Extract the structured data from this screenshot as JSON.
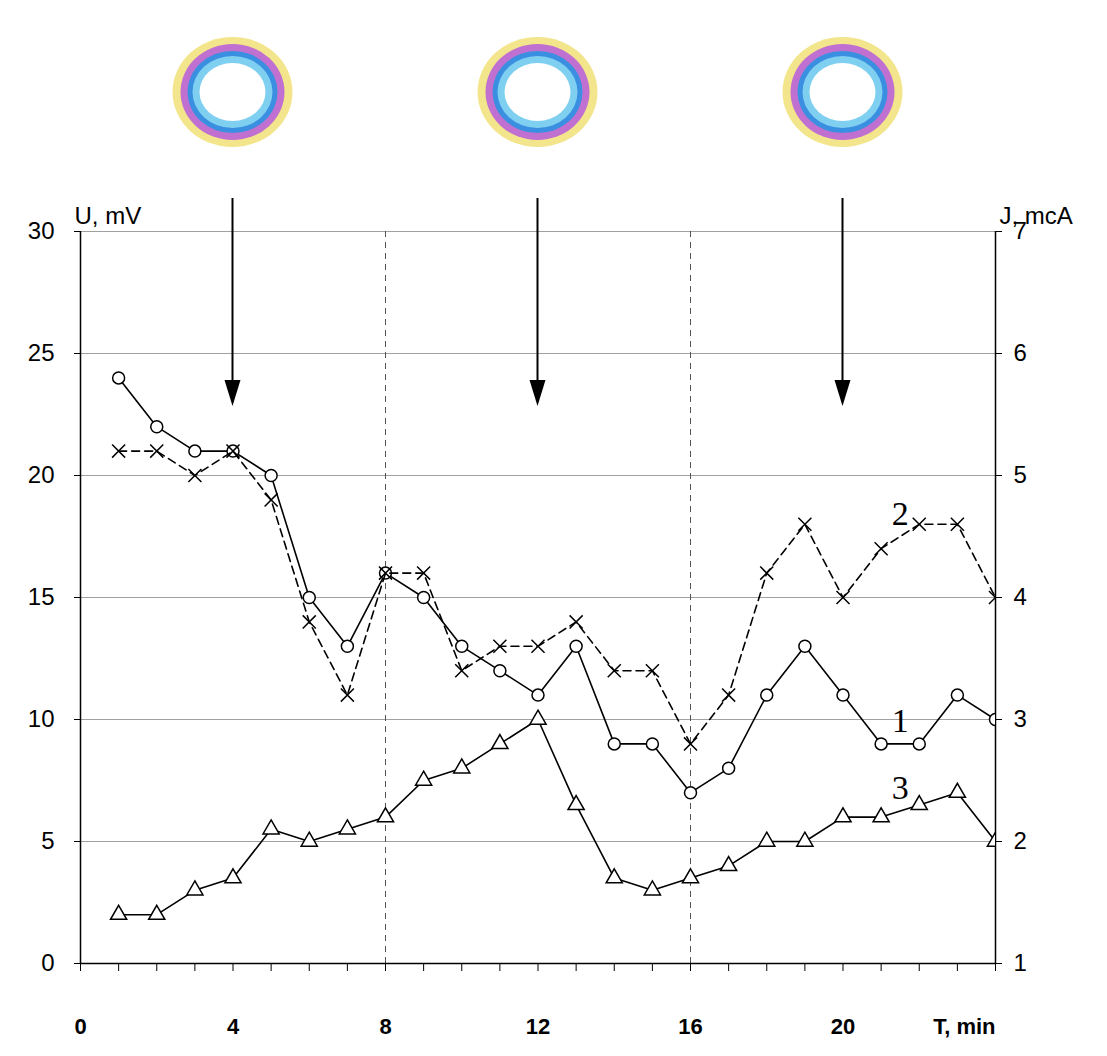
{
  "chart_data": {
    "type": "line",
    "x_label": "T, min",
    "y_label": "U, mV",
    "y2_label": "J, mcA",
    "x": [
      1,
      2,
      3,
      4,
      5,
      6,
      7,
      8,
      9,
      10,
      11,
      12,
      13,
      14,
      15,
      16,
      17,
      18,
      19,
      20,
      21,
      22,
      23,
      24
    ],
    "xlim": [
      0,
      24
    ],
    "xticks": [
      0,
      4,
      8,
      12,
      16,
      20
    ],
    "ylim": [
      0,
      30
    ],
    "yticks": [
      0,
      5,
      10,
      15,
      20,
      25,
      30
    ],
    "y2lim": [
      1,
      7
    ],
    "y2ticks": [
      1,
      2,
      3,
      4,
      5,
      6,
      7
    ],
    "grid": true,
    "vlines": [
      8,
      16
    ],
    "arrows_x": [
      4,
      12,
      20
    ],
    "series": [
      {
        "name": "1",
        "color": "#000000",
        "marker": "circle",
        "line_style": "solid",
        "values": [
          24,
          22,
          21,
          21,
          20,
          15,
          13,
          16,
          15,
          13,
          12,
          11,
          13,
          9,
          9,
          7,
          8,
          11,
          13,
          11,
          9,
          9,
          11,
          10
        ]
      },
      {
        "name": "2",
        "color": "#000000",
        "marker": "x",
        "line_style": "dashed",
        "values": [
          21,
          21,
          20,
          21,
          19,
          14,
          11,
          16,
          16,
          12,
          13,
          13,
          14,
          12,
          12,
          9,
          11,
          16,
          18,
          15,
          17,
          18,
          18,
          15
        ]
      },
      {
        "name": "3",
        "color": "#000000",
        "marker": "triangle",
        "line_style": "solid",
        "values": [
          2,
          2,
          3,
          3.5,
          5.5,
          5,
          5.5,
          6,
          7.5,
          8,
          9,
          10,
          6.5,
          3.5,
          3,
          3.5,
          4,
          5,
          5,
          6,
          6,
          6.5,
          7,
          5
        ]
      }
    ]
  }
}
